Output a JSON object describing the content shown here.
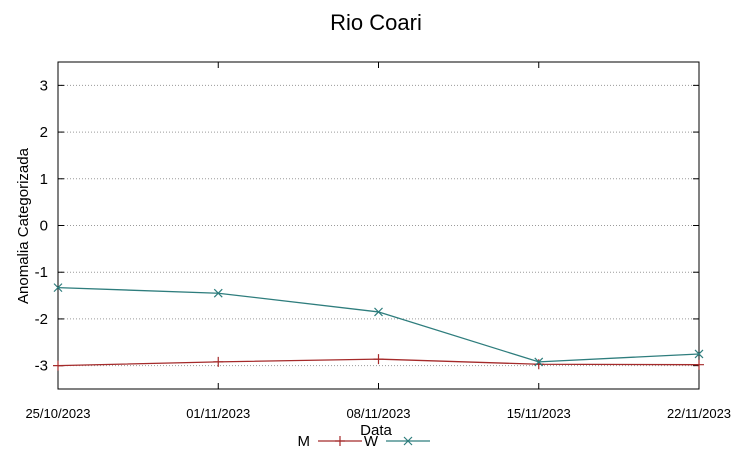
{
  "chart_data": {
    "type": "line",
    "title": "Rio Coari",
    "xlabel": "Data",
    "ylabel": "Anomalia Categorizada",
    "categories": [
      "25/10/2023",
      "01/11/2023",
      "08/11/2023",
      "15/11/2023",
      "22/11/2023"
    ],
    "yticks": [
      "3",
      "2",
      "1",
      "0",
      "-1",
      "-2",
      "-3"
    ],
    "ylim": [
      -3.5,
      3.5
    ],
    "grid": "horizontal dotted",
    "legend_position": "bottom",
    "series": [
      {
        "name": "M",
        "color": "#a52a2a",
        "marker": "plus",
        "values": [
          -3.0,
          -2.92,
          -2.86,
          -2.97,
          -2.98
        ]
      },
      {
        "name": "W",
        "color": "#2e7d7d",
        "marker": "x",
        "values": [
          -1.33,
          -1.45,
          -1.85,
          -2.92,
          -2.75
        ]
      }
    ]
  }
}
